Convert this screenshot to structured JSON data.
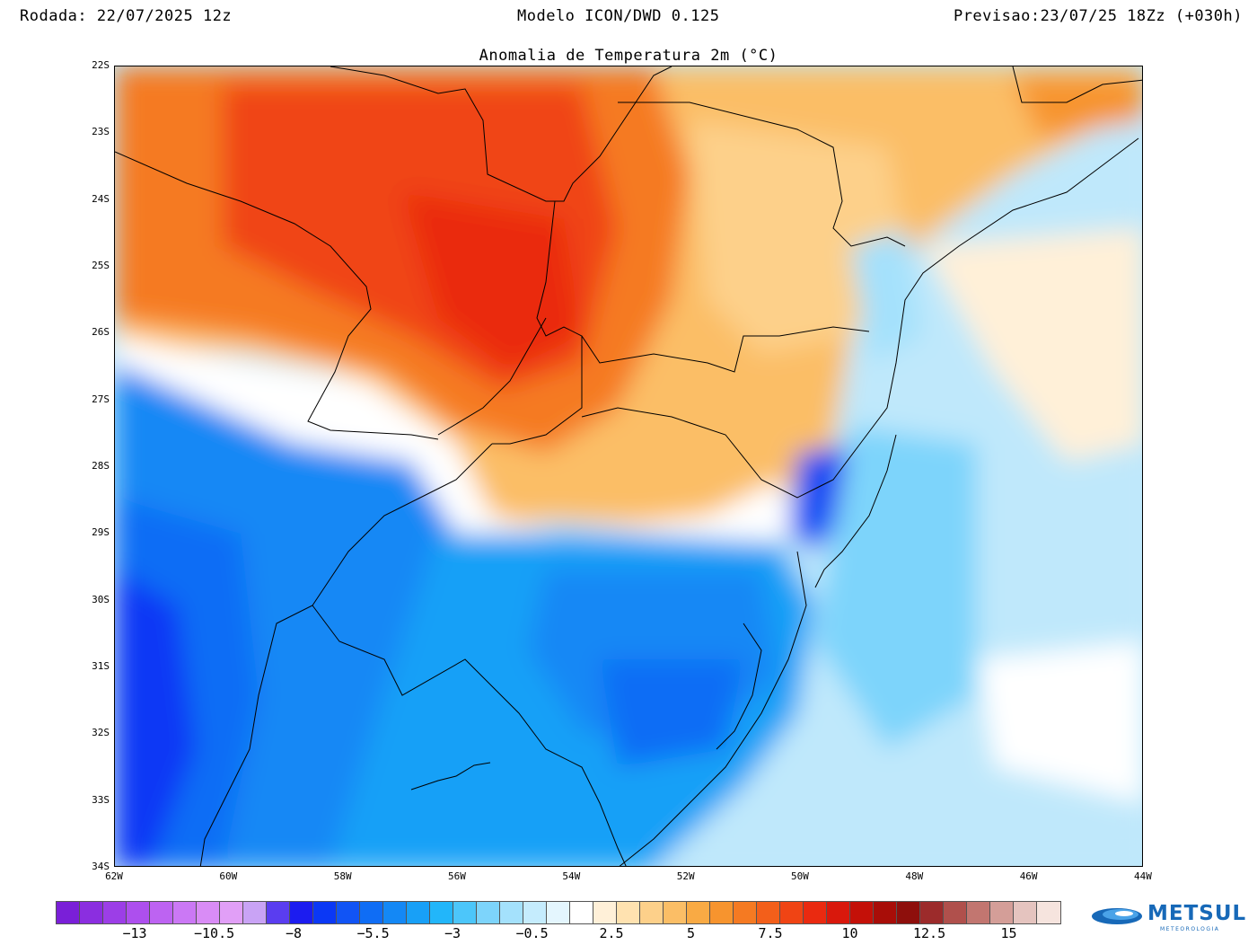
{
  "header": {
    "left": "Rodada: 22/07/2025 12z",
    "center": "Modelo ICON/DWD 0.125",
    "right": "Previsao:23/07/25 18Zz (+030h)"
  },
  "map": {
    "title": "Anomalia de Temperatura 2m (°C)",
    "lat_labels": [
      "22S",
      "23S",
      "24S",
      "25S",
      "26S",
      "27S",
      "28S",
      "29S",
      "30S",
      "31S",
      "32S",
      "33S",
      "34S"
    ],
    "lon_labels": [
      "62W",
      "60W",
      "58W",
      "56W",
      "54W",
      "52W",
      "50W",
      "48W",
      "46W",
      "44W"
    ]
  },
  "colorbar": {
    "colors": [
      "#7a1fd8",
      "#8b2ee0",
      "#9c3ee7",
      "#ad4fee",
      "#bd63f2",
      "#cb78f5",
      "#d98cf6",
      "#e19ff7",
      "#c9a3f5",
      "#5a3df0",
      "#1c1cf0",
      "#0b38f5",
      "#1154f5",
      "#0f6df5",
      "#1488f5",
      "#18a0f7",
      "#22b6fa",
      "#4cc6fa",
      "#7dd4fb",
      "#a4e1fc",
      "#c5ecfd",
      "#e4f6fe",
      "#ffffff",
      "#fff0d8",
      "#ffe2b0",
      "#fdd08a",
      "#fbbe66",
      "#f9aa44",
      "#f7942e",
      "#f57a22",
      "#f35f1a",
      "#f04414",
      "#ea2a10",
      "#d9180c",
      "#c41008",
      "#a80d08",
      "#8e0f0c",
      "#9c2b2b",
      "#b0504c",
      "#c27670",
      "#d49e98",
      "#e5c4bf",
      "#f6e4de"
    ],
    "labels": [
      "−13",
      "−10.5",
      "−8",
      "−5.5",
      "−3",
      "−0.5",
      "2.5",
      "5",
      "7.5",
      "10",
      "12.5",
      "15"
    ]
  },
  "logo": {
    "text": "METSUL",
    "subtext": "METEOROLOGIA"
  }
}
